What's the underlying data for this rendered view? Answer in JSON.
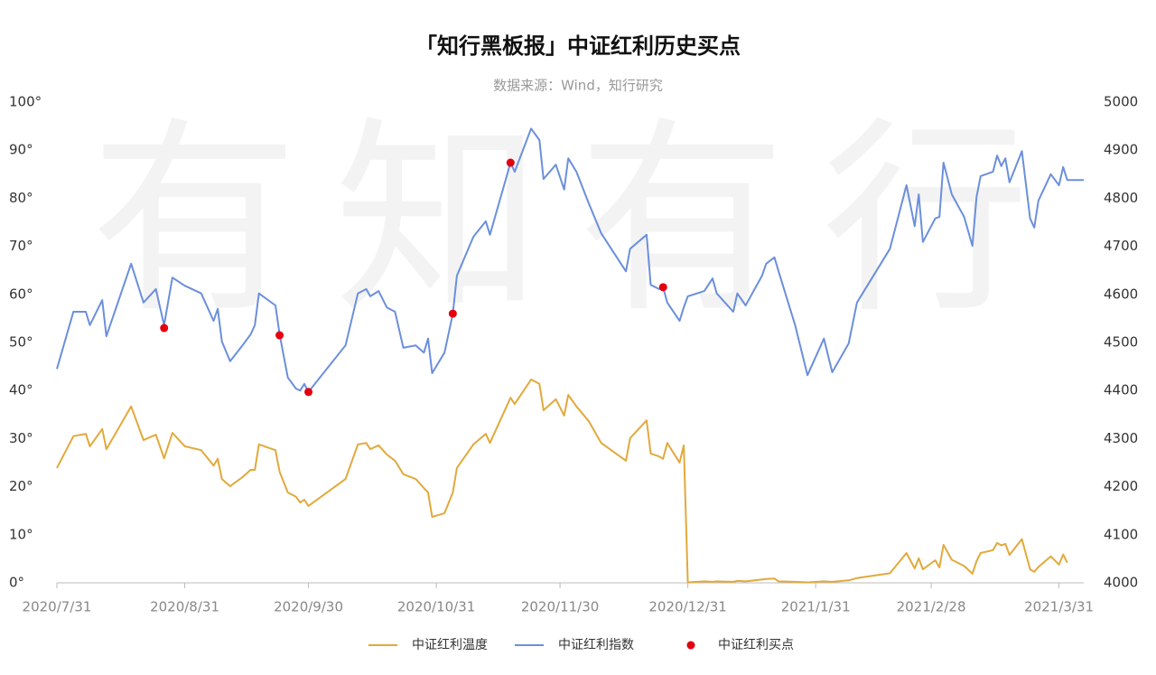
{
  "chart_data": {
    "type": "line",
    "title": "「知行黑板报」中证红利历史买点",
    "subtitle": "数据来源：Wind，知行研究",
    "watermark": "有知有行",
    "x": [
      "2020/7/31",
      "2020/8/4",
      "2020/8/7",
      "2020/8/8",
      "2020/8/11",
      "2020/8/12",
      "2020/8/18",
      "2020/8/21",
      "2020/8/24",
      "2020/8/26",
      "2020/8/28",
      "2020/8/31",
      "2020/9/4",
      "2020/9/7",
      "2020/9/8",
      "2020/9/9",
      "2020/9/11",
      "2020/9/14",
      "2020/9/16",
      "2020/9/17",
      "2020/9/18",
      "2020/9/22",
      "2020/9/23",
      "2020/9/25",
      "2020/9/27",
      "2020/9/28",
      "2020/9/29",
      "2020/9/30",
      "2020/10/9",
      "2020/10/12",
      "2020/10/14",
      "2020/10/15",
      "2020/10/17",
      "2020/10/19",
      "2020/10/21",
      "2020/10/23",
      "2020/10/26",
      "2020/10/28",
      "2020/10/29",
      "2020/10/30",
      "2020/11/2",
      "2020/11/4",
      "2020/11/5",
      "2020/11/9",
      "2020/11/12",
      "2020/11/13",
      "2020/11/18",
      "2020/11/19",
      "2020/11/23",
      "2020/11/25",
      "2020/11/26",
      "2020/11/29",
      "2020/12/1",
      "2020/12/2",
      "2020/12/4",
      "2020/12/7",
      "2020/12/10",
      "2020/12/16",
      "2020/12/17",
      "2020/12/21",
      "2020/12/22",
      "2020/12/24",
      "2020/12/25",
      "2020/12/26",
      "2020/12/29",
      "2020/12/30",
      "2020/12/31",
      "2021/1/4",
      "2021/1/6",
      "2021/1/7",
      "2021/1/11",
      "2021/1/12",
      "2021/1/14",
      "2021/1/18",
      "2021/1/19",
      "2021/1/21",
      "2021/1/22",
      "2021/1/26",
      "2021/1/29",
      "2021/2/2",
      "2021/2/4",
      "2021/2/8",
      "2021/2/10",
      "2021/2/18",
      "2021/2/22",
      "2021/2/24",
      "2021/2/25",
      "2021/2/26",
      "2021/3/1",
      "2021/3/2",
      "2021/3/3",
      "2021/3/5",
      "2021/3/8",
      "2021/3/10",
      "2021/3/11",
      "2021/3/12",
      "2021/3/15",
      "2021/3/16",
      "2021/3/17",
      "2021/3/18",
      "2021/3/19",
      "2021/3/22",
      "2021/3/24",
      "2021/3/25",
      "2021/3/26",
      "2021/3/29",
      "2021/3/31",
      "2021/4/1",
      "2021/4/2",
      "2021/4/6"
    ],
    "series": [
      {
        "name": "中证红利温度",
        "color": "#e2a93c",
        "axis": "y",
        "values": [
          23.9,
          30.5,
          31,
          28.4,
          32,
          27.8,
          36.7,
          29.7,
          30.8,
          25.9,
          31.2,
          28.4,
          27.6,
          24.4,
          25.8,
          21.6,
          20.1,
          22,
          23.5,
          23.5,
          28.8,
          27.6,
          23.1,
          18.8,
          17.9,
          16.7,
          17.3,
          16,
          21.6,
          28.8,
          29.1,
          27.8,
          28.6,
          26.7,
          25.4,
          22.6,
          21.6,
          19.7,
          18.8,
          13.7,
          14.5,
          18.8,
          23.9,
          28.8,
          31,
          29.1,
          38.5,
          37.2,
          42.3,
          41.4,
          35.9,
          38.2,
          34.8,
          39.1,
          36.7,
          33.6,
          29.1,
          25.4,
          30.1,
          33.8,
          26.9,
          26.3,
          25.8,
          29.1,
          25.0,
          28.6,
          0.1,
          0.3,
          0.2,
          0.3,
          0.2,
          0.4,
          0.3,
          0.7,
          0.8,
          0.9,
          0.3,
          0.2,
          0.1,
          0.3,
          0.2,
          0.5,
          1,
          2,
          6.2,
          3,
          5.1,
          2.8,
          4.7,
          3.2,
          7.9,
          4.8,
          3.5,
          1.9,
          4.5,
          6.2,
          6.8,
          8.3,
          7.8,
          8.1,
          5.8,
          9.1,
          2.8,
          2.3,
          3.3,
          5.5,
          3.8,
          5.9,
          4.2,
          null
        ]
      },
      {
        "name": "中证红利指数",
        "color": "#6b8fdc",
        "axis": "y2",
        "values": [
          4445,
          4564,
          4564,
          4536,
          4588,
          4513,
          4664,
          4583,
          4611,
          4536,
          4635,
          4618,
          4602,
          4545,
          4570,
          4502,
          4461,
          4494,
          4517,
          4536,
          4602,
          4577,
          4517,
          4427,
          4404,
          4400,
          4414,
          4397,
          4494,
          4602,
          4611,
          4596,
          4607,
          4573,
          4564,
          4489,
          4494,
          4479,
          4508,
          4436,
          4479,
          4560,
          4639,
          4720,
          4752,
          4724,
          4874,
          4855,
          4945,
          4921,
          4840,
          4870,
          4818,
          4883,
          4855,
          4789,
          4727,
          4648,
          4695,
          4724,
          4620,
          4611,
          4615,
          4583,
          4545,
          4573,
          4596,
          4607,
          4633,
          4602,
          4564,
          4602,
          4577,
          4639,
          4664,
          4677,
          4648,
          4536,
          4432,
          4508,
          4438,
          4498,
          4583,
          4695,
          4827,
          4742,
          4808,
          4709,
          4758,
          4761,
          4874,
          4808,
          4761,
          4701,
          4803,
          4846,
          4855,
          4889,
          4867,
          4883,
          4833,
          4898,
          4758,
          4739,
          4795,
          4850,
          4827,
          4865,
          4838,
          4838
        ]
      },
      {
        "name": "中证红利买点",
        "color": "#e3000f",
        "axis": "y2",
        "type": "scatter",
        "x": [
          "2020/8/26",
          "2020/9/23",
          "2020/9/30",
          "2020/11/4",
          "2020/11/18",
          "2020/12/25"
        ],
        "values": [
          4530,
          4515,
          4397,
          4560,
          4874,
          4615
        ]
      }
    ],
    "xlim": [
      "2020/7/31",
      "2021/4/6"
    ],
    "xticks": [
      "2020/7/31",
      "2020/8/31",
      "2020/9/30",
      "2020/10/31",
      "2020/11/30",
      "2020/12/31",
      "2021/1/31",
      "2021/2/28",
      "2021/3/31"
    ],
    "ylim": [
      0,
      100
    ],
    "yticks": [
      {
        "value": 0,
        "label": "0°"
      },
      {
        "value": 10,
        "label": "10°"
      },
      {
        "value": 20,
        "label": "20°"
      },
      {
        "value": 30,
        "label": "30°"
      },
      {
        "value": 40,
        "label": "40°"
      },
      {
        "value": 50,
        "label": "50°"
      },
      {
        "value": 60,
        "label": "60°"
      },
      {
        "value": 70,
        "label": "70°"
      },
      {
        "value": 80,
        "label": "80°"
      },
      {
        "value": 90,
        "label": "90°"
      },
      {
        "value": 100,
        "label": "100°"
      }
    ],
    "y2lim": [
      4000,
      5000
    ],
    "y2ticks": [
      4000,
      4100,
      4200,
      4300,
      4400,
      4500,
      4600,
      4700,
      4800,
      4900,
      5000
    ],
    "grid": false,
    "legend": "bottom"
  }
}
